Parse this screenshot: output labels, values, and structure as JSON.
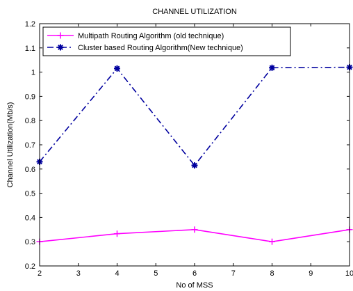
{
  "chart_data": {
    "type": "line",
    "title": "CHANNEL UTILIZATION",
    "xlabel": "No of MSS",
    "ylabel": "Channel Utilization(Mb/s)",
    "xlim": [
      2,
      10
    ],
    "ylim": [
      0.2,
      1.2
    ],
    "xticks": [
      2,
      3,
      4,
      5,
      6,
      7,
      8,
      9,
      10
    ],
    "yticks": [
      0.2,
      0.3,
      0.4,
      0.5,
      0.6,
      0.7,
      0.8,
      0.9,
      1,
      1.1,
      1.2
    ],
    "grid": false,
    "legend_position": "top-left",
    "series": [
      {
        "name": "Multipath Routing Algorithm (old technique)",
        "color": "#ff00ff",
        "line_style": "solid",
        "marker": "plus",
        "x": [
          2,
          4,
          6,
          8,
          10
        ],
        "y": [
          0.3,
          0.333,
          0.35,
          0.3,
          0.35
        ]
      },
      {
        "name": "Cluster based Routing Algorithm(New technique)",
        "color": "#00009f",
        "line_style": "dash-dot",
        "marker": "star",
        "x": [
          2,
          4,
          6,
          8,
          10
        ],
        "y": [
          0.63,
          1.015,
          0.615,
          1.018,
          1.02
        ]
      }
    ]
  }
}
